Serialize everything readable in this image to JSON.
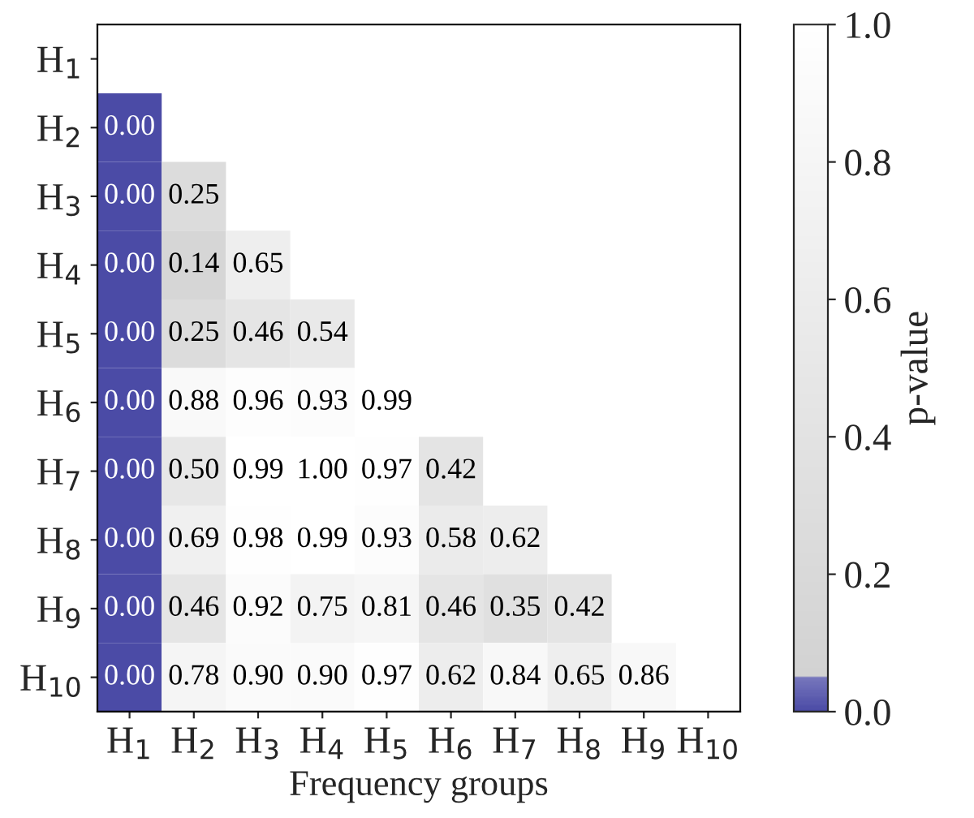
{
  "chart_data": {
    "type": "heatmap",
    "xlabel": "Frequency groups",
    "clabel": "p-value",
    "categories": [
      "H$_{1}$",
      "H$_{2}$",
      "H$_{3}$",
      "H$_{4}$",
      "H$_{5}$",
      "H$_{6}$",
      "H$_{7}$",
      "H$_{8}$",
      "H$_{9}$",
      "H$_{10}$"
    ],
    "y_categories": [
      "H$_{1}$",
      "H$_{2}$",
      "H$_{3}$",
      "H$_{4}$",
      "H$_{5}$",
      "H$_{6}$",
      "H$_{7}$",
      "H$_{8}$",
      "H$_{9}$",
      "H$_{10}$"
    ],
    "cells": [
      [
        null,
        null,
        null,
        null,
        null,
        null,
        null,
        null,
        null,
        null
      ],
      [
        0.0,
        null,
        null,
        null,
        null,
        null,
        null,
        null,
        null,
        null
      ],
      [
        0.0,
        0.25,
        null,
        null,
        null,
        null,
        null,
        null,
        null,
        null
      ],
      [
        0.0,
        0.14,
        0.65,
        null,
        null,
        null,
        null,
        null,
        null,
        null
      ],
      [
        0.0,
        0.25,
        0.46,
        0.54,
        null,
        null,
        null,
        null,
        null,
        null
      ],
      [
        0.0,
        0.88,
        0.96,
        0.93,
        0.99,
        null,
        null,
        null,
        null,
        null
      ],
      [
        0.0,
        0.5,
        0.99,
        1.0,
        0.97,
        0.42,
        null,
        null,
        null,
        null
      ],
      [
        0.0,
        0.69,
        0.98,
        0.99,
        0.93,
        0.58,
        0.62,
        null,
        null,
        null
      ],
      [
        0.0,
        0.46,
        0.92,
        0.75,
        0.81,
        0.46,
        0.35,
        0.42,
        null,
        null
      ],
      [
        0.0,
        0.78,
        0.9,
        0.9,
        0.97,
        0.62,
        0.84,
        0.65,
        0.86,
        null
      ]
    ],
    "cell_labels": [
      [
        null,
        null,
        null,
        null,
        null,
        null,
        null,
        null,
        null,
        null
      ],
      [
        "0.00",
        null,
        null,
        null,
        null,
        null,
        null,
        null,
        null,
        null
      ],
      [
        "0.00",
        "0.25",
        null,
        null,
        null,
        null,
        null,
        null,
        null,
        null
      ],
      [
        "0.00",
        "0.14",
        "0.65",
        null,
        null,
        null,
        null,
        null,
        null,
        null
      ],
      [
        "0.00",
        "0.25",
        "0.46",
        "0.54",
        null,
        null,
        null,
        null,
        null,
        null
      ],
      [
        "0.00",
        "0.88",
        "0.96",
        "0.93",
        "0.99",
        null,
        null,
        null,
        null,
        null
      ],
      [
        "0.00",
        "0.50",
        "0.99",
        "1.00",
        "0.97",
        "0.42",
        null,
        null,
        null,
        null
      ],
      [
        "0.00",
        "0.69",
        "0.98",
        "0.99",
        "0.93",
        "0.58",
        "0.62",
        null,
        null,
        null
      ],
      [
        "0.00",
        "0.46",
        "0.92",
        "0.75",
        "0.81",
        "0.46",
        "0.35",
        "0.42",
        null,
        null
      ],
      [
        "0.00",
        "0.78",
        "0.90",
        "0.90",
        "0.97",
        "0.62",
        "0.84",
        "0.65",
        "0.86",
        null
      ]
    ],
    "clim": [
      0,
      1
    ],
    "cticks": [
      {
        "value": 0,
        "label": "0.0"
      },
      0.2,
      0.4,
      0.6,
      0.8,
      {
        "value": 1,
        "label": "1.0"
      }
    ]
  }
}
